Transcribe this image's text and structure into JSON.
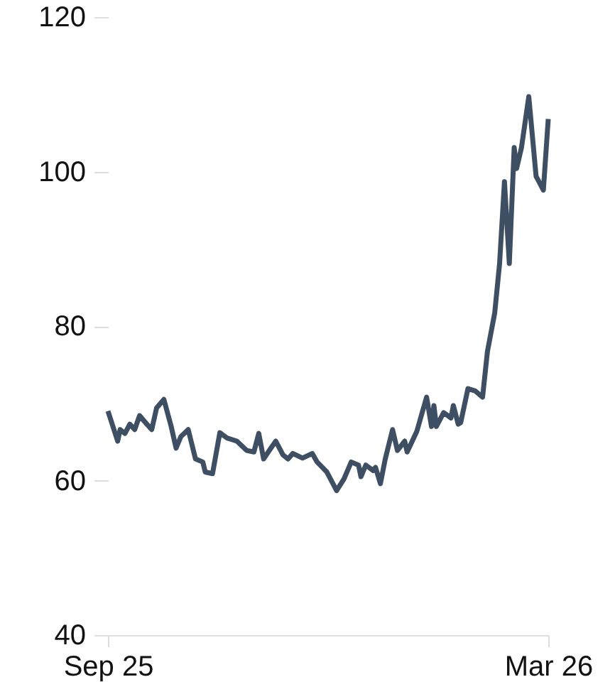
{
  "chart_data": {
    "type": "line",
    "x": [
      "2025-09-01",
      "2025-09-05",
      "2025-09-06",
      "2025-09-08",
      "2025-09-10",
      "2025-09-12",
      "2025-09-14",
      "2025-09-17",
      "2025-09-19",
      "2025-09-21",
      "2025-09-24",
      "2025-09-27",
      "2025-09-29",
      "2025-10-01",
      "2025-10-04",
      "2025-10-07",
      "2025-10-10",
      "2025-10-11",
      "2025-10-14",
      "2025-10-17",
      "2025-10-20",
      "2025-10-24",
      "2025-10-28",
      "2025-10-31",
      "2025-11-02",
      "2025-11-04",
      "2025-11-07",
      "2025-11-09",
      "2025-11-12",
      "2025-11-14",
      "2025-11-16",
      "2025-11-20",
      "2025-11-24",
      "2025-11-26",
      "2025-11-30",
      "2025-12-04",
      "2025-12-07",
      "2025-12-10",
      "2025-12-13",
      "2025-12-14",
      "2025-12-16",
      "2025-12-19",
      "2025-12-20",
      "2025-12-22",
      "2025-12-24",
      "2025-12-27",
      "2025-12-29",
      "2026-01-01",
      "2026-01-02",
      "2026-01-06",
      "2026-01-10",
      "2026-01-12",
      "2026-01-13",
      "2026-01-14",
      "2026-01-17",
      "2026-01-20",
      "2026-01-21",
      "2026-01-23",
      "2026-01-24",
      "2026-01-27",
      "2026-01-30",
      "2026-02-02",
      "2026-02-04",
      "2026-02-07",
      "2026-02-09",
      "2026-02-11",
      "2026-02-13",
      "2026-02-15",
      "2026-02-16",
      "2026-02-18",
      "2026-02-21",
      "2026-02-24",
      "2026-02-27",
      "2026-03-01"
    ],
    "series": [
      {
        "color": "#3f4f63",
        "values": [
          69.0,
          65.1,
          66.6,
          66.1,
          67.3,
          66.6,
          68.4,
          67.3,
          66.6,
          69.4,
          70.5,
          67.0,
          64.2,
          65.7,
          66.6,
          62.8,
          62.4,
          61.1,
          60.9,
          66.2,
          65.5,
          65.1,
          63.9,
          63.7,
          66.1,
          62.8,
          64.2,
          65.1,
          63.3,
          62.8,
          63.5,
          62.9,
          63.5,
          62.4,
          61.1,
          58.7,
          60.2,
          62.4,
          62.0,
          60.5,
          62.0,
          61.3,
          61.7,
          59.6,
          62.8,
          66.6,
          63.9,
          65.1,
          63.7,
          66.4,
          70.8,
          67.0,
          69.7,
          67.0,
          68.8,
          68.1,
          69.7,
          67.3,
          67.5,
          71.9,
          71.6,
          70.8,
          76.7,
          81.7,
          88.1,
          98.7,
          88.1,
          103.1,
          100.4,
          103.1,
          109.7,
          99.4,
          97.6,
          106.8
        ]
      }
    ],
    "xlim": [
      "2025-09-01",
      "2026-03-01"
    ],
    "xticks": [
      {
        "value": "2025-09-01",
        "label": "Sep 25"
      },
      {
        "value": "2026-03-01",
        "label": "Mar 26"
      }
    ],
    "ylim": [
      40,
      120
    ],
    "yticks": [
      40,
      60,
      80,
      100,
      120
    ],
    "grid": false,
    "marker": "none",
    "line_style": "solid"
  }
}
